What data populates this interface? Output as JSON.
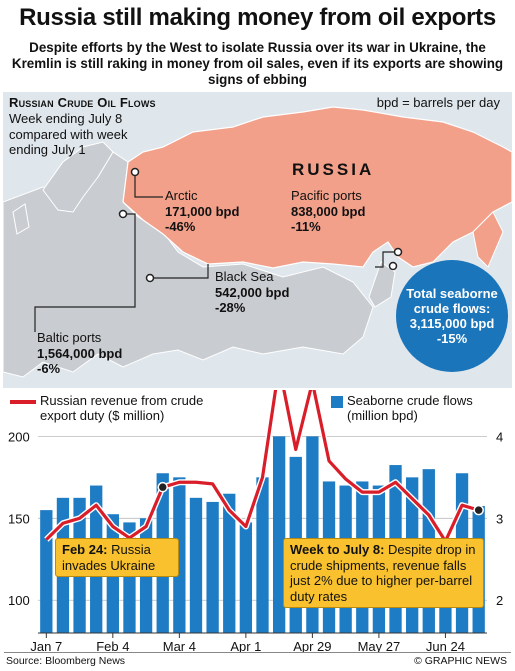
{
  "header": {
    "title": "Russia still making money from oil exports",
    "subtitle": "Despite efforts by the West to isolate Russia over its war in Ukraine, the Kremlin is still raking in money from oil sales, even if its exports are showing signs of ebbing"
  },
  "map": {
    "title": "Russian Crude Oil Flows",
    "note": "Week ending July 8 compared with week ending July 1",
    "units_note": "bpd = barrels per day",
    "country_label": "RUSSIA",
    "colors": {
      "russia": "#f2a08a",
      "land": "#c9ccd0",
      "sea": "#dfe6ec",
      "callout_line": "#222222"
    },
    "flows": [
      {
        "name": "Arctic",
        "value": "171,000 bpd",
        "change": "-46%"
      },
      {
        "name": "Pacific ports",
        "value": "838,000 bpd",
        "change": "-11%"
      },
      {
        "name": "Black Sea",
        "value": "542,000 bpd",
        "change": "-28%"
      },
      {
        "name": "Baltic ports",
        "value": "1,564,000 bpd",
        "change": "-6%"
      }
    ],
    "total": {
      "label": "Total seaborne crude flows:",
      "value": "3,115,000 bpd",
      "change": "-15%",
      "color": "#1a75bb"
    }
  },
  "legend": {
    "line_label": "Russian revenue from crude export duty ($ million)",
    "bar_label": "Seaborne crude flows (million bpd)",
    "line_color": "#d91e2a",
    "bar_color": "#1e7cc4"
  },
  "callouts": {
    "feb24": {
      "date": "Feb 24:",
      "text": "Russia invades Ukraine"
    },
    "july8": {
      "date": "Week to July 8:",
      "text": "Despite drop in crude shipments, revenue falls just 2% due to higher per-barrel duty rates"
    }
  },
  "chart_data": {
    "type": "bar",
    "x_tick_labels": [
      "Jan 7",
      "Feb 4",
      "Mar 4",
      "Apr 1",
      "Apr 29",
      "May 27",
      "Jun 24"
    ],
    "y_left": {
      "label": "Russian revenue from crude export duty ($ million)",
      "ticks": [
        100,
        150,
        200
      ],
      "range": [
        80,
        210
      ]
    },
    "y_right": {
      "label": "Seaborne crude flows (million bpd)",
      "ticks": [
        2,
        3,
        4
      ],
      "range": [
        1.6,
        4.2
      ]
    },
    "series": [
      {
        "name": "Seaborne crude flows (million bpd)",
        "axis": "right",
        "kind": "bar",
        "values": [
          3.1,
          3.25,
          3.25,
          3.4,
          3.05,
          2.95,
          3.0,
          3.55,
          3.5,
          3.25,
          3.2,
          3.3,
          2.95,
          3.5,
          4.0,
          3.75,
          4.0,
          3.45,
          3.4,
          3.45,
          3.4,
          3.65,
          3.5,
          3.6,
          2.7,
          3.55,
          3.15
        ]
      },
      {
        "name": "Russian revenue from crude export duty ($ million)",
        "axis": "left",
        "kind": "line",
        "values": [
          137,
          147,
          150,
          158,
          145,
          138,
          145,
          169,
          172,
          172,
          171,
          155,
          145,
          175,
          243,
          192,
          233,
          185,
          174,
          166,
          166,
          172,
          162,
          152,
          136,
          158,
          155
        ]
      }
    ],
    "markers": [
      {
        "index": 7,
        "series": 1
      },
      {
        "index": 26,
        "series": 1
      }
    ]
  },
  "footer": {
    "source": "Source: Bloomberg News",
    "credit": "© GRAPHIC NEWS"
  }
}
